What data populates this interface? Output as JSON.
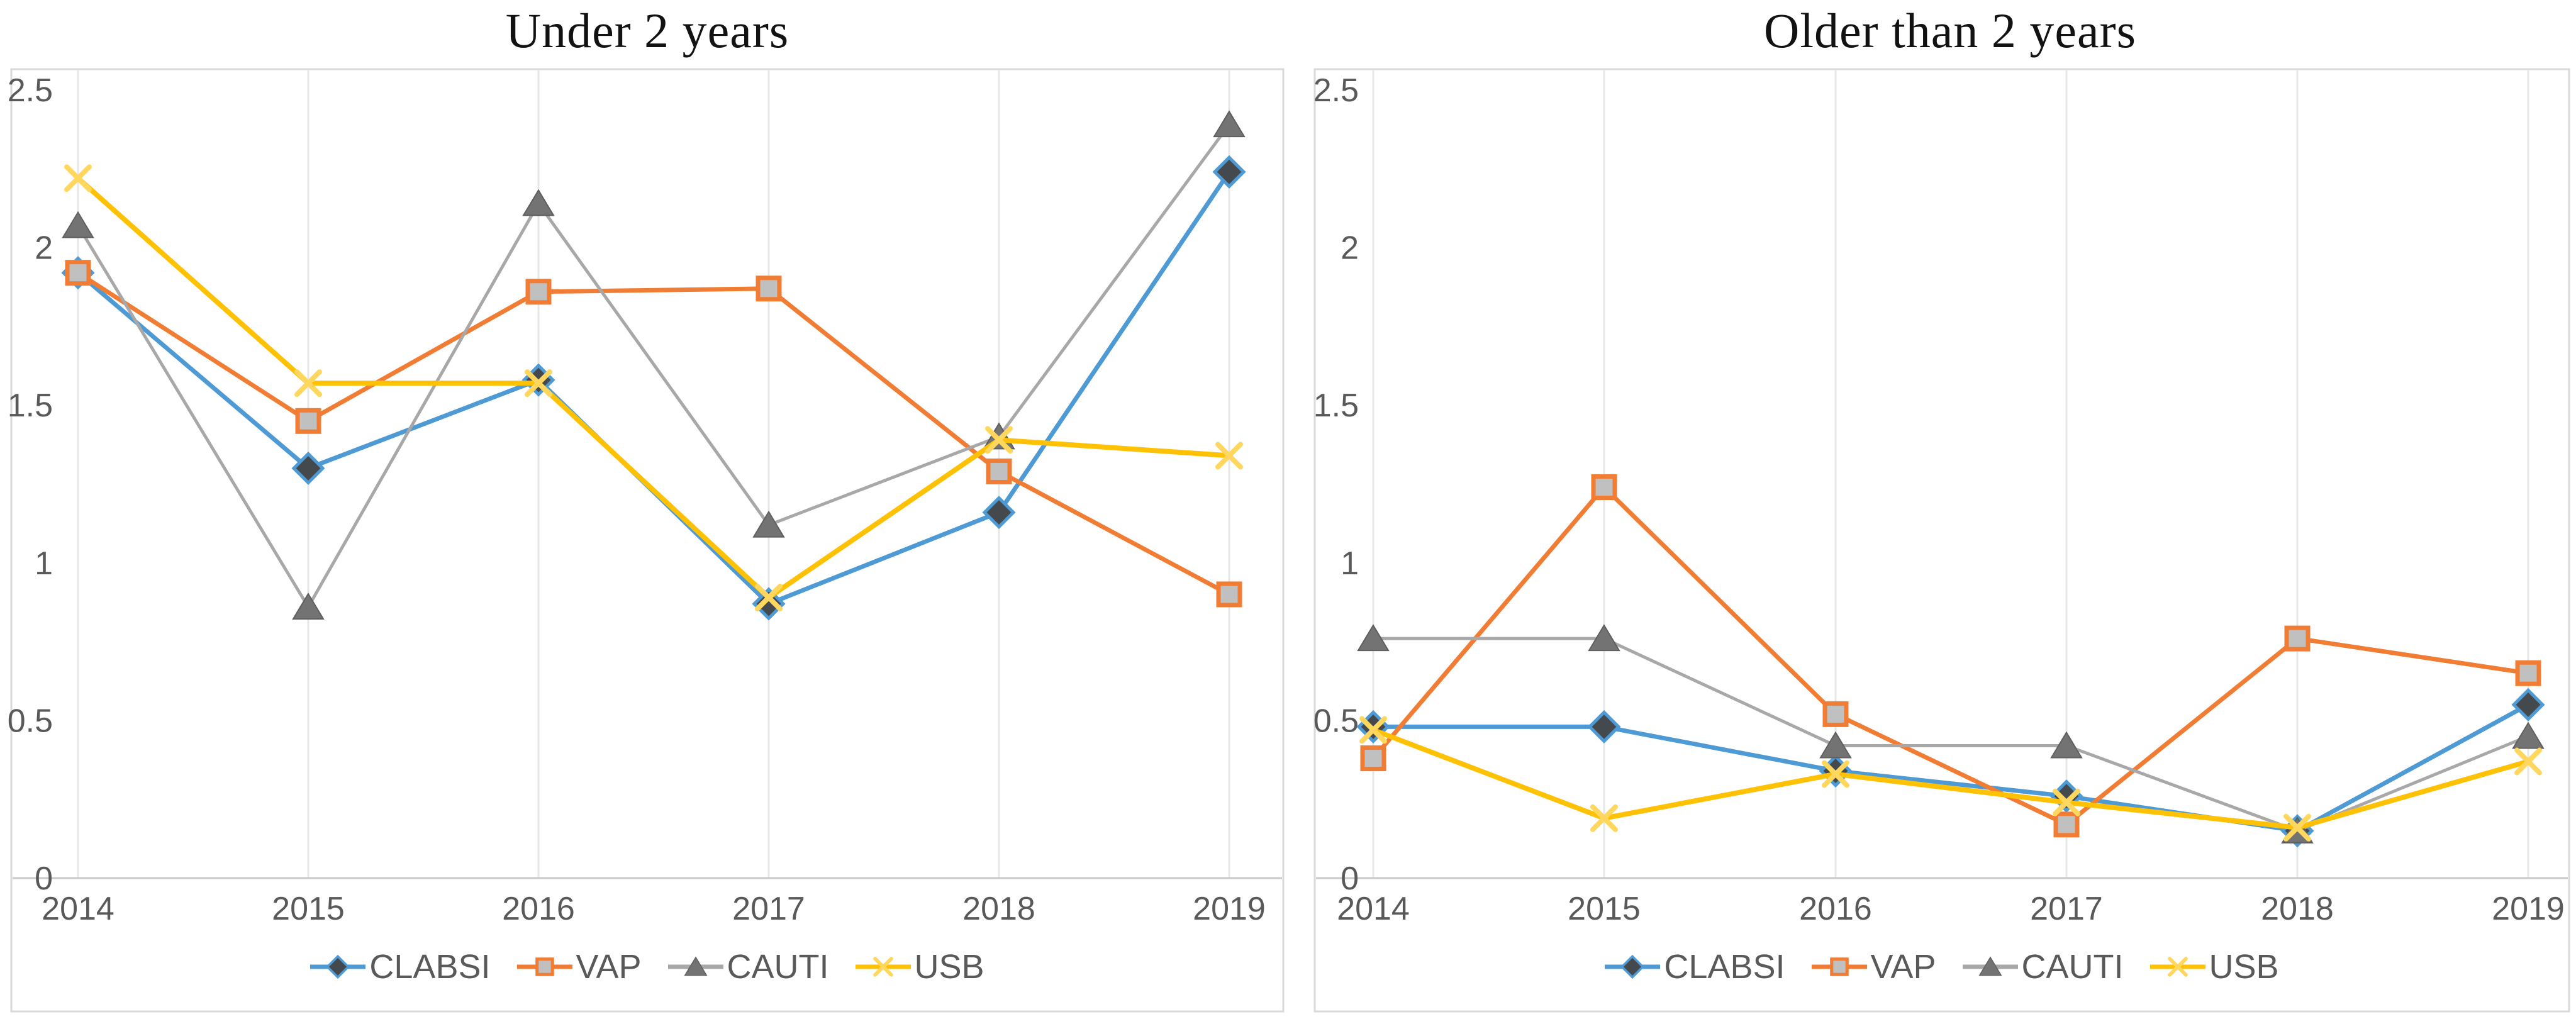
{
  "style": {
    "background": "#FFFFFF",
    "frame": "#D9D9D9",
    "grid": "#E7E7E7",
    "axis": "#C9C9C9",
    "tick_color": "#595959",
    "title_color": "#121212",
    "legend_color": "#595959"
  },
  "chart_data": [
    {
      "type": "line",
      "title": "Under 2 years",
      "categories": [
        "2014",
        "2015",
        "2016",
        "2017",
        "2018",
        "2019"
      ],
      "y_ticks": [
        0,
        0.5,
        1,
        1.5,
        2,
        2.5
      ],
      "y_tick_labels": [
        "0",
        "0.5",
        "1",
        "1.5",
        "2",
        "2.5"
      ],
      "ylim": [
        0,
        2.5
      ],
      "grid": "vertical-only",
      "legend_position": "bottom",
      "series": [
        {
          "name": "CLABSI",
          "marker": "diamond",
          "line_color": "#4D9AD4",
          "marker_fill": "#44494E",
          "marker_stroke": "#4D9AD4",
          "line_width": 7,
          "values": [
            1.92,
            1.3,
            1.58,
            0.87,
            1.16,
            2.24
          ]
        },
        {
          "name": "VAP",
          "marker": "square",
          "line_color": "#F07D33",
          "marker_fill": "#C0C0C0",
          "marker_stroke": "#F07D33",
          "line_width": 7,
          "values": [
            1.92,
            1.45,
            1.86,
            1.87,
            1.29,
            0.9
          ]
        },
        {
          "name": "CAUTI",
          "marker": "triangle",
          "line_color": "#A8A8A8",
          "marker_fill": "#737373",
          "marker_stroke": "#5F5F5F",
          "line_width": 5,
          "values": [
            2.07,
            0.86,
            2.14,
            1.12,
            1.4,
            2.39
          ]
        },
        {
          "name": "USB",
          "marker": "x",
          "line_color": "#FFC103",
          "marker_fill": "#FFD75E",
          "marker_stroke": "#FFD75E",
          "line_width": 8,
          "values": [
            2.22,
            1.57,
            1.57,
            0.89,
            1.39,
            1.34
          ]
        }
      ]
    },
    {
      "type": "line",
      "title": "Older than 2 years",
      "categories": [
        "2014",
        "2015",
        "2016",
        "2017",
        "2018",
        "2019"
      ],
      "y_ticks": [
        0,
        0.5,
        1,
        1.5,
        2,
        2.5
      ],
      "y_tick_labels": [
        "0",
        "0.5",
        "1",
        "1.5",
        "2",
        "2.5"
      ],
      "ylim": [
        0,
        2.5
      ],
      "grid": "vertical-only",
      "legend_position": "bottom",
      "series": [
        {
          "name": "CLABSI",
          "marker": "diamond",
          "line_color": "#4D9AD4",
          "marker_fill": "#44494E",
          "marker_stroke": "#4D9AD4",
          "line_width": 7,
          "values": [
            0.48,
            0.48,
            0.34,
            0.26,
            0.15,
            0.55
          ]
        },
        {
          "name": "VAP",
          "marker": "square",
          "line_color": "#F07D33",
          "marker_fill": "#C0C0C0",
          "marker_stroke": "#F07D33",
          "line_width": 7,
          "values": [
            0.38,
            1.24,
            0.52,
            0.17,
            0.76,
            0.65
          ]
        },
        {
          "name": "CAUTI",
          "marker": "triangle",
          "line_color": "#A8A8A8",
          "marker_fill": "#737373",
          "marker_stroke": "#5F5F5F",
          "line_width": 5,
          "values": [
            0.76,
            0.76,
            0.42,
            0.42,
            0.15,
            0.45
          ]
        },
        {
          "name": "USB",
          "marker": "x",
          "line_color": "#FFC103",
          "marker_fill": "#FFD75E",
          "marker_stroke": "#FFD75E",
          "line_width": 8,
          "values": [
            0.47,
            0.19,
            0.33,
            0.24,
            0.16,
            0.37
          ]
        }
      ]
    }
  ]
}
